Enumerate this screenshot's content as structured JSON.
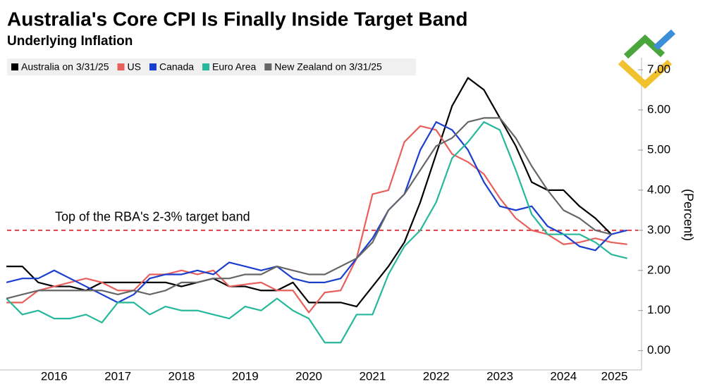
{
  "chart_data": {
    "type": "line",
    "title": "Australia's Core CPI Is Finally Inside Target Band",
    "subtitle": "Underlying Inflation",
    "y_label": "(Percent)",
    "annotation": "Top of the RBA's 2-3% target band",
    "target_line": 3,
    "target_color": "#e0404a",
    "x": [
      2015.75,
      2016,
      2016.25,
      2016.5,
      2016.75,
      2017,
      2017.25,
      2017.5,
      2017.75,
      2018,
      2018.25,
      2018.5,
      2018.75,
      2019,
      2019.25,
      2019.5,
      2019.75,
      2020,
      2020.25,
      2020.5,
      2020.75,
      2021,
      2021.25,
      2021.5,
      2021.75,
      2022,
      2022.25,
      2022.5,
      2022.75,
      2023,
      2023.25,
      2023.5,
      2023.75,
      2024,
      2024.25,
      2024.5,
      2024.75,
      2025,
      2025.25,
      2025.5
    ],
    "xlim": [
      2015.76,
      2025.67
    ],
    "xticks": [
      {
        "value": 2016.5,
        "label": "2016"
      },
      {
        "value": 2017.5,
        "label": "2017"
      },
      {
        "value": 2018.5,
        "label": "2018"
      },
      {
        "value": 2019.5,
        "label": "2019"
      },
      {
        "value": 2020.5,
        "label": "2020"
      },
      {
        "value": 2021.5,
        "label": "2021"
      },
      {
        "value": 2022.5,
        "label": "2022"
      },
      {
        "value": 2023.5,
        "label": "2023"
      },
      {
        "value": 2024.5,
        "label": "2024"
      },
      {
        "value": 2025.3,
        "label": "2025"
      }
    ],
    "ylim": [
      -0.48,
      7.3
    ],
    "yticks": [
      {
        "value": 0,
        "label": "0.00"
      },
      {
        "value": 1,
        "label": "1.00"
      },
      {
        "value": 2,
        "label": "2.00"
      },
      {
        "value": 3,
        "label": "3.00"
      },
      {
        "value": 4,
        "label": "4.00"
      },
      {
        "value": 5,
        "label": "5.00"
      },
      {
        "value": 6,
        "label": "6.00"
      },
      {
        "value": 7,
        "label": "7.00"
      }
    ],
    "series": [
      {
        "name": "Australia on 3/31/25",
        "color": "#000000",
        "values": [
          2.1,
          2.1,
          1.7,
          1.6,
          1.6,
          1.5,
          1.7,
          1.7,
          1.7,
          1.7,
          1.7,
          1.6,
          1.7,
          1.8,
          1.6,
          1.6,
          1.5,
          1.5,
          1.7,
          1.2,
          1.2,
          1.2,
          1.1,
          1.6,
          2.1,
          2.7,
          3.7,
          4.9,
          6.1,
          6.8,
          6.5,
          5.8,
          5.1,
          4.2,
          4.0,
          4.0,
          3.6,
          3.3,
          2.9,
          null
        ]
      },
      {
        "name": "US",
        "color": "#e8605c",
        "values": [
          1.2,
          1.2,
          1.5,
          1.6,
          1.7,
          1.8,
          1.7,
          1.5,
          1.5,
          1.9,
          1.9,
          2.0,
          1.9,
          2.0,
          1.6,
          1.65,
          1.7,
          1.5,
          1.5,
          0.95,
          1.45,
          1.5,
          2.3,
          3.9,
          4.0,
          5.2,
          5.6,
          5.5,
          4.9,
          4.7,
          4.4,
          3.8,
          3.3,
          3.0,
          2.9,
          2.65,
          2.7,
          2.8,
          2.7,
          2.65
        ]
      },
      {
        "name": "Canada",
        "color": "#1a3fcf",
        "values": [
          1.7,
          1.8,
          1.8,
          2.0,
          1.8,
          1.6,
          1.4,
          1.2,
          1.4,
          1.8,
          1.9,
          1.9,
          2.0,
          1.9,
          2.2,
          2.1,
          2.0,
          2.1,
          1.8,
          1.7,
          1.7,
          1.8,
          2.3,
          2.8,
          3.5,
          3.9,
          5.0,
          5.7,
          5.5,
          5.0,
          4.2,
          3.6,
          3.5,
          3.6,
          3.1,
          2.9,
          2.6,
          2.5,
          2.9,
          3.0
        ]
      },
      {
        "name": "Euro Area",
        "color": "#26b89a",
        "values": [
          1.3,
          0.9,
          1.0,
          0.8,
          0.8,
          0.9,
          0.7,
          1.2,
          1.2,
          0.9,
          1.1,
          1.0,
          1.0,
          0.9,
          0.8,
          1.1,
          1.0,
          1.3,
          1.0,
          0.8,
          0.2,
          0.2,
          0.9,
          0.9,
          1.9,
          2.6,
          3.0,
          3.7,
          4.8,
          5.2,
          5.7,
          5.5,
          4.5,
          3.4,
          2.9,
          2.9,
          2.9,
          2.7,
          2.4,
          2.3
        ]
      },
      {
        "name": "New Zealand on 3/31/25",
        "color": "#666666",
        "values": [
          1.3,
          1.4,
          1.5,
          1.5,
          1.5,
          1.5,
          1.5,
          1.4,
          1.5,
          1.4,
          1.5,
          1.7,
          1.7,
          1.8,
          1.8,
          1.9,
          1.9,
          2.1,
          2.0,
          1.9,
          1.9,
          2.1,
          2.3,
          2.7,
          3.5,
          3.9,
          4.5,
          5.1,
          5.3,
          5.7,
          5.8,
          5.8,
          5.3,
          4.6,
          4.0,
          3.5,
          3.3,
          3.0,
          2.9,
          null
        ]
      }
    ]
  }
}
